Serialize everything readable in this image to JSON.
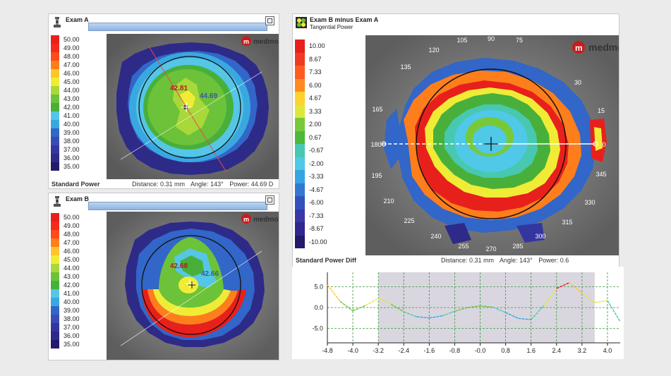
{
  "brand": "medmont",
  "scale_abs": [
    "50.00",
    "49.00",
    "48.00",
    "47.00",
    "46.00",
    "45.00",
    "44.00",
    "43.00",
    "42.00",
    "41.00",
    "40.00",
    "39.00",
    "38.00",
    "37.00",
    "36.00",
    "35.00"
  ],
  "scale_abs_colors": [
    "#e8201c",
    "#f22c1c",
    "#ff4a1c",
    "#ff7e1c",
    "#ffc62a",
    "#f0ec36",
    "#a8d83a",
    "#6cc238",
    "#48b03a",
    "#55c6e6",
    "#3aa8e0",
    "#3266c8",
    "#3a4cb4",
    "#3436a0",
    "#2e2a88",
    "#241a6a"
  ],
  "scale_diff": [
    "10.00",
    "8.67",
    "7.33",
    "6.00",
    "4.67",
    "3.33",
    "2.00",
    "0.67",
    "-0.67",
    "-2.00",
    "-3.33",
    "-4.67",
    "-6.00",
    "-7.33",
    "-8.67",
    "-10.00"
  ],
  "scale_diff_colors": [
    "#e8201c",
    "#f03a22",
    "#ff5a20",
    "#ff8a22",
    "#ffd22e",
    "#dde83a",
    "#78c93a",
    "#4cb83c",
    "#48c8b0",
    "#50c8e8",
    "#36a4e0",
    "#327ad0",
    "#3452be",
    "#3838a8",
    "#30288c",
    "#241a6a"
  ],
  "exam_a": {
    "title": "Exam A",
    "footer_label": "Standard Power",
    "distance": "Distance: 0.31 mm",
    "angle": "Angle: 143°",
    "power": "Power: 44.69 D",
    "val_left": "42.81",
    "val_right": "44.69"
  },
  "exam_b": {
    "title": "Exam B",
    "footer_label": "",
    "val_left": "42.68",
    "val_right": "42.66"
  },
  "diff": {
    "title": "Exam B minus Exam A",
    "subtitle": "Tangential Power",
    "footer_label": "Standard Power Diff",
    "distance": "Distance: 0.31 mm",
    "angle": "Angle: 143°",
    "power": "Power: 0.6",
    "angles": [
      "90",
      "105",
      "75",
      "120",
      "135",
      "30",
      "165",
      "15",
      "180",
      "0",
      "195",
      "345",
      "210",
      "330",
      "225",
      "315",
      "240",
      "300",
      "255",
      "270",
      "285"
    ],
    "axis_left": "180",
    "axis_right": "0"
  },
  "chart_data": {
    "type": "line",
    "x_ticks": [
      "-4.8",
      "-4.0",
      "-3.2",
      "-2.4",
      "-1.6",
      "-0.8",
      "-0.0",
      "0.8",
      "1.6",
      "2.4",
      "3.2",
      "4.0"
    ],
    "y_ticks": [
      "5.0",
      "0.0",
      "-5.0"
    ],
    "xlim": [
      -4.8,
      4.4
    ],
    "ylim": [
      -8.5,
      8.5
    ],
    "shaded_range": [
      -3.2,
      3.6
    ],
    "x": [
      -4.8,
      -4.4,
      -4.0,
      -3.6,
      -3.2,
      -2.8,
      -2.4,
      -2.0,
      -1.6,
      -1.2,
      -0.8,
      -0.4,
      0.0,
      0.4,
      0.8,
      1.2,
      1.6,
      2.0,
      2.4,
      2.8,
      3.2,
      3.6,
      4.0,
      4.4
    ],
    "y": [
      5.5,
      1.5,
      -0.8,
      0.5,
      2.2,
      0.8,
      -1.0,
      -2.2,
      -2.5,
      -2.0,
      -0.9,
      0.0,
      0.4,
      0.1,
      -1.2,
      -2.6,
      -2.9,
      0.5,
      4.6,
      6.0,
      3.5,
      1.2,
      1.7,
      -3.4
    ]
  }
}
